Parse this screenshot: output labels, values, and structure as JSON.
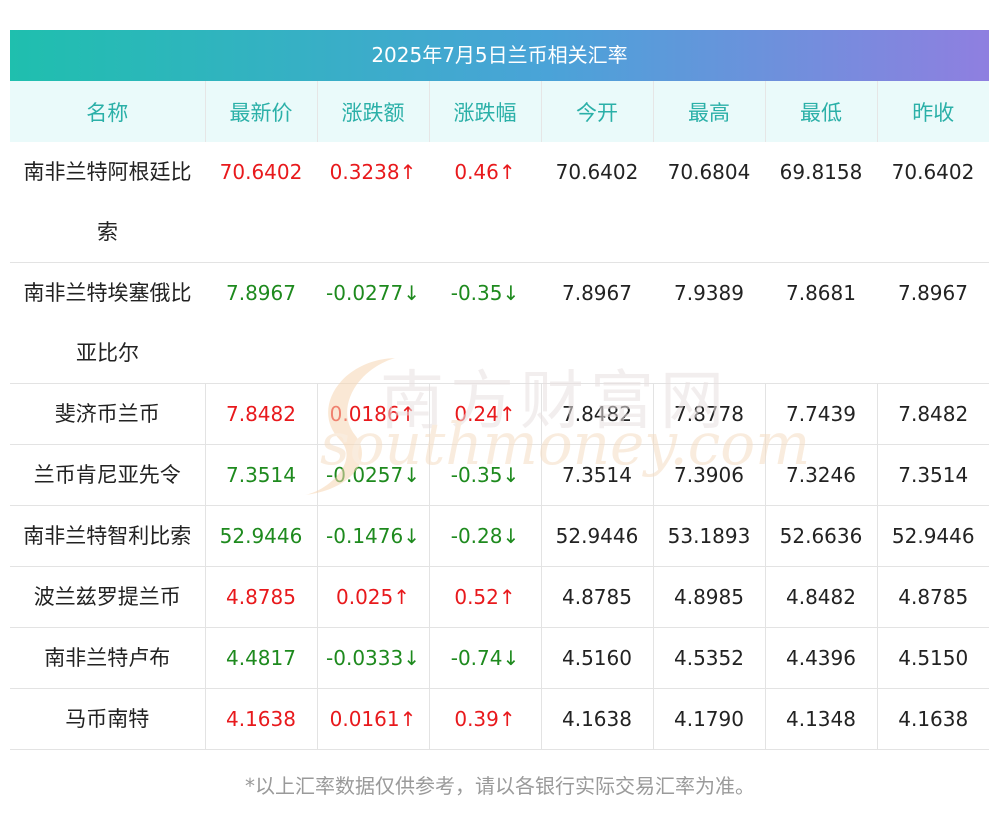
{
  "title": "2025年7月5日兰币相关汇率",
  "columns": [
    "名称",
    "最新价",
    "涨跌额",
    "涨跌幅",
    "今开",
    "最高",
    "最低",
    "昨收"
  ],
  "rows": [
    {
      "name": "南非兰特阿根廷比索",
      "latest": "70.6402",
      "change": "0.3238↑",
      "pct": "0.46↑",
      "open": "70.6402",
      "high": "70.6804",
      "low": "69.8158",
      "prev": "70.6402",
      "dir": "up"
    },
    {
      "name": "南非兰特埃塞俄比亚比尔",
      "latest": "7.8967",
      "change": "-0.0277↓",
      "pct": "-0.35↓",
      "open": "7.8967",
      "high": "7.9389",
      "low": "7.8681",
      "prev": "7.8967",
      "dir": "down"
    },
    {
      "name": "斐济币兰币",
      "latest": "7.8482",
      "change": "0.0186↑",
      "pct": "0.24↑",
      "open": "7.8482",
      "high": "7.8778",
      "low": "7.7439",
      "prev": "7.8482",
      "dir": "up"
    },
    {
      "name": "兰币肯尼亚先令",
      "latest": "7.3514",
      "change": "-0.0257↓",
      "pct": "-0.35↓",
      "open": "7.3514",
      "high": "7.3906",
      "low": "7.3246",
      "prev": "7.3514",
      "dir": "down"
    },
    {
      "name": "南非兰特智利比索",
      "latest": "52.9446",
      "change": "-0.1476↓",
      "pct": "-0.28↓",
      "open": "52.9446",
      "high": "53.1893",
      "low": "52.6636",
      "prev": "52.9446",
      "dir": "down"
    },
    {
      "name": "波兰兹罗提兰币",
      "latest": "4.8785",
      "change": "0.025↑",
      "pct": "0.52↑",
      "open": "4.8785",
      "high": "4.8985",
      "low": "4.8482",
      "prev": "4.8785",
      "dir": "up"
    },
    {
      "name": "南非兰特卢布",
      "latest": "4.4817",
      "change": "-0.0333↓",
      "pct": "-0.74↓",
      "open": "4.5160",
      "high": "4.5352",
      "low": "4.4396",
      "prev": "4.5150",
      "dir": "down"
    },
    {
      "name": "马币南特",
      "latest": "4.1638",
      "change": "0.0161↑",
      "pct": "0.39↑",
      "open": "4.1638",
      "high": "4.1790",
      "low": "4.1348",
      "prev": "4.1638",
      "dir": "up"
    }
  ],
  "watermark": {
    "cn": "南方财富网",
    "en": "southmoney.com"
  },
  "note": "*以上汇率数据仅供参考，请以各银行实际交易汇率为准。",
  "colors": {
    "up": "#e8191c",
    "down": "#1e8a1e",
    "header_text": "#2bb0a8"
  }
}
